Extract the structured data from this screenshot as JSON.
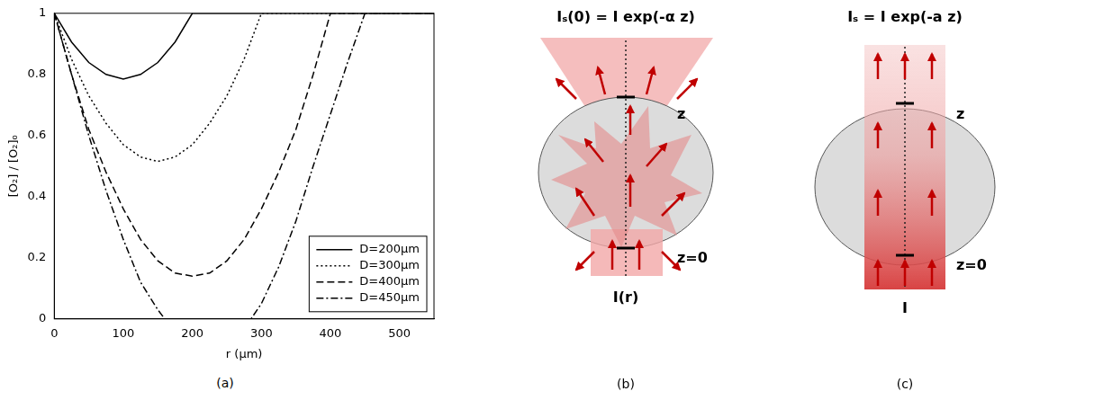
{
  "chart_data": {
    "type": "line",
    "panel_label": "(a)",
    "x_label": "r (µm)",
    "y_label": "[O₂] / [O₂]₀",
    "xlim": [
      0,
      550
    ],
    "xticks": [
      0,
      100,
      200,
      300,
      400,
      500
    ],
    "ylim": [
      0,
      1
    ],
    "yticks": [
      0,
      0.2,
      0.4,
      0.6,
      0.8,
      1
    ],
    "grid": false,
    "legend": "lower right",
    "series": [
      {
        "name": "D=200μm",
        "color": "#000000",
        "line_style": "solid",
        "x": [
          0,
          25,
          50,
          75,
          100,
          125,
          150,
          175,
          200,
          550
        ],
        "values": [
          1,
          0.906,
          0.839,
          0.8,
          0.785,
          0.8,
          0.839,
          0.906,
          1,
          1
        ]
      },
      {
        "name": "D=300μm",
        "color": "#000000",
        "line_style": "dotted",
        "x": [
          0,
          25,
          50,
          75,
          100,
          125,
          150,
          175,
          200,
          225,
          250,
          275,
          300,
          550
        ],
        "values": [
          1,
          0.85,
          0.73,
          0.64,
          0.57,
          0.53,
          0.515,
          0.53,
          0.57,
          0.64,
          0.73,
          0.85,
          1,
          1
        ]
      },
      {
        "name": "D=400μm",
        "color": "#000000",
        "line_style": "dashed",
        "x": [
          0,
          25,
          50,
          75,
          100,
          125,
          150,
          175,
          200,
          225,
          250,
          275,
          300,
          325,
          350,
          375,
          400,
          550
        ],
        "values": [
          1,
          0.8,
          0.62,
          0.48,
          0.36,
          0.26,
          0.19,
          0.15,
          0.14,
          0.15,
          0.19,
          0.26,
          0.36,
          0.48,
          0.62,
          0.8,
          1,
          1
        ]
      },
      {
        "name": "D=450μm",
        "color": "#000000",
        "line_style": "dashdot",
        "x": [
          0,
          25,
          50,
          75,
          100,
          125,
          150,
          160,
          285,
          300,
          325,
          350,
          375,
          400,
          425,
          450,
          550
        ],
        "values": [
          1,
          0.8,
          0.6,
          0.42,
          0.26,
          0.12,
          0.03,
          0,
          0,
          0.05,
          0.17,
          0.32,
          0.5,
          0.67,
          0.84,
          1,
          1
        ]
      }
    ]
  },
  "diagrams": [
    {
      "panel_label": "(b)",
      "top_text": "Iₛ(0) = I exp(-α z)",
      "z_label": "z",
      "z0_label": "z=0",
      "bottom_text": "I(r)"
    },
    {
      "panel_label": "(c)",
      "top_text": "Iₛ = I exp(-a z)",
      "z_label": "z",
      "z0_label": "z=0",
      "bottom_text": "I"
    }
  ]
}
